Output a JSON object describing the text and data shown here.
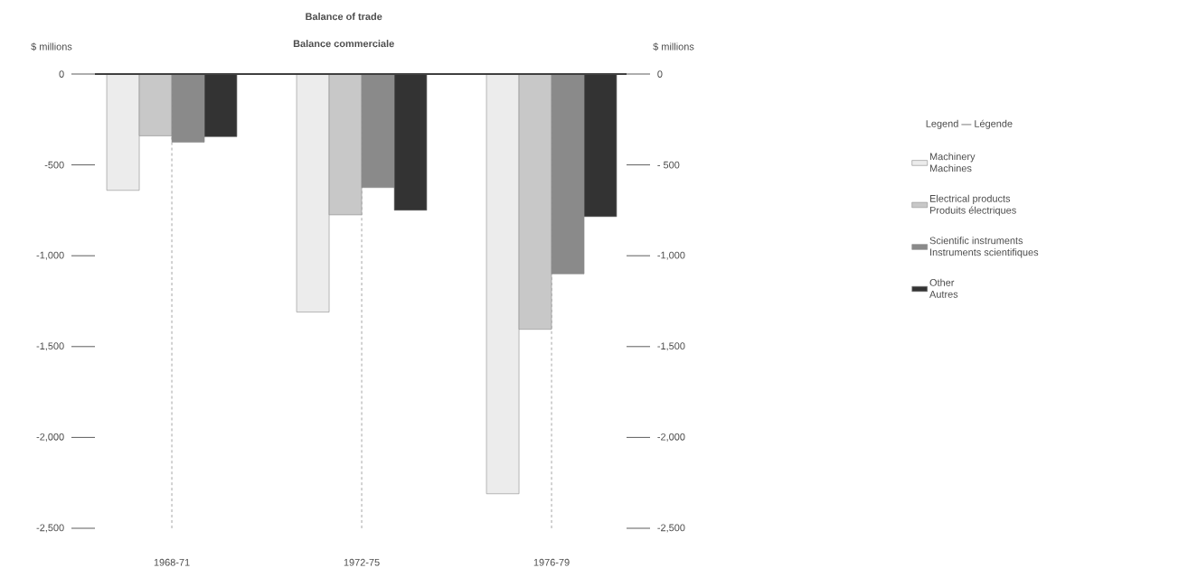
{
  "chart_data": {
    "type": "bar",
    "title": "Balance of trade",
    "subtitle": "Balance commerciale",
    "ylabel": "$ millions",
    "y2label": "$ millions",
    "legend_title": "Legend — Légende",
    "categories": [
      "1968-71",
      "1972-75",
      "1976-79"
    ],
    "series": [
      {
        "name": "Machinery\nMachines",
        "color": "#ececec",
        "values": [
          -640,
          -1310,
          -2310
        ]
      },
      {
        "name": "Electrical products\nProduits électriques",
        "color": "#c8c8c8",
        "values": [
          -340,
          -775,
          -1405
        ]
      },
      {
        "name": "Scientific instruments\nInstruments scientifiques",
        "color": "#8a8a8a",
        "values": [
          -375,
          -625,
          -1100
        ]
      },
      {
        "name": "Other\nAutres",
        "color": "#333333",
        "values": [
          -345,
          -750,
          -785
        ]
      }
    ],
    "ylim": [
      -2500,
      0
    ],
    "yticks": [
      {
        "value": 0,
        "label": "0"
      },
      {
        "value": -500,
        "label": "-500"
      },
      {
        "value": -1000,
        "label": "-1,000"
      },
      {
        "value": -1500,
        "label": "-1,500"
      },
      {
        "value": -2000,
        "label": "-2,000"
      },
      {
        "value": -2500,
        "label": "-2,500"
      }
    ],
    "y2lim": [
      -2500,
      0
    ],
    "y2ticks": [
      {
        "value": 0,
        "label": "0"
      },
      {
        "value": -500,
        "label": "- 500"
      },
      {
        "value": -1000,
        "label": "-1,000"
      },
      {
        "value": -1500,
        "label": "-1,500"
      },
      {
        "value": -2000,
        "label": "-2,000"
      },
      {
        "value": -2500,
        "label": "-2,500"
      }
    ],
    "grid": "x",
    "legend": "right"
  }
}
